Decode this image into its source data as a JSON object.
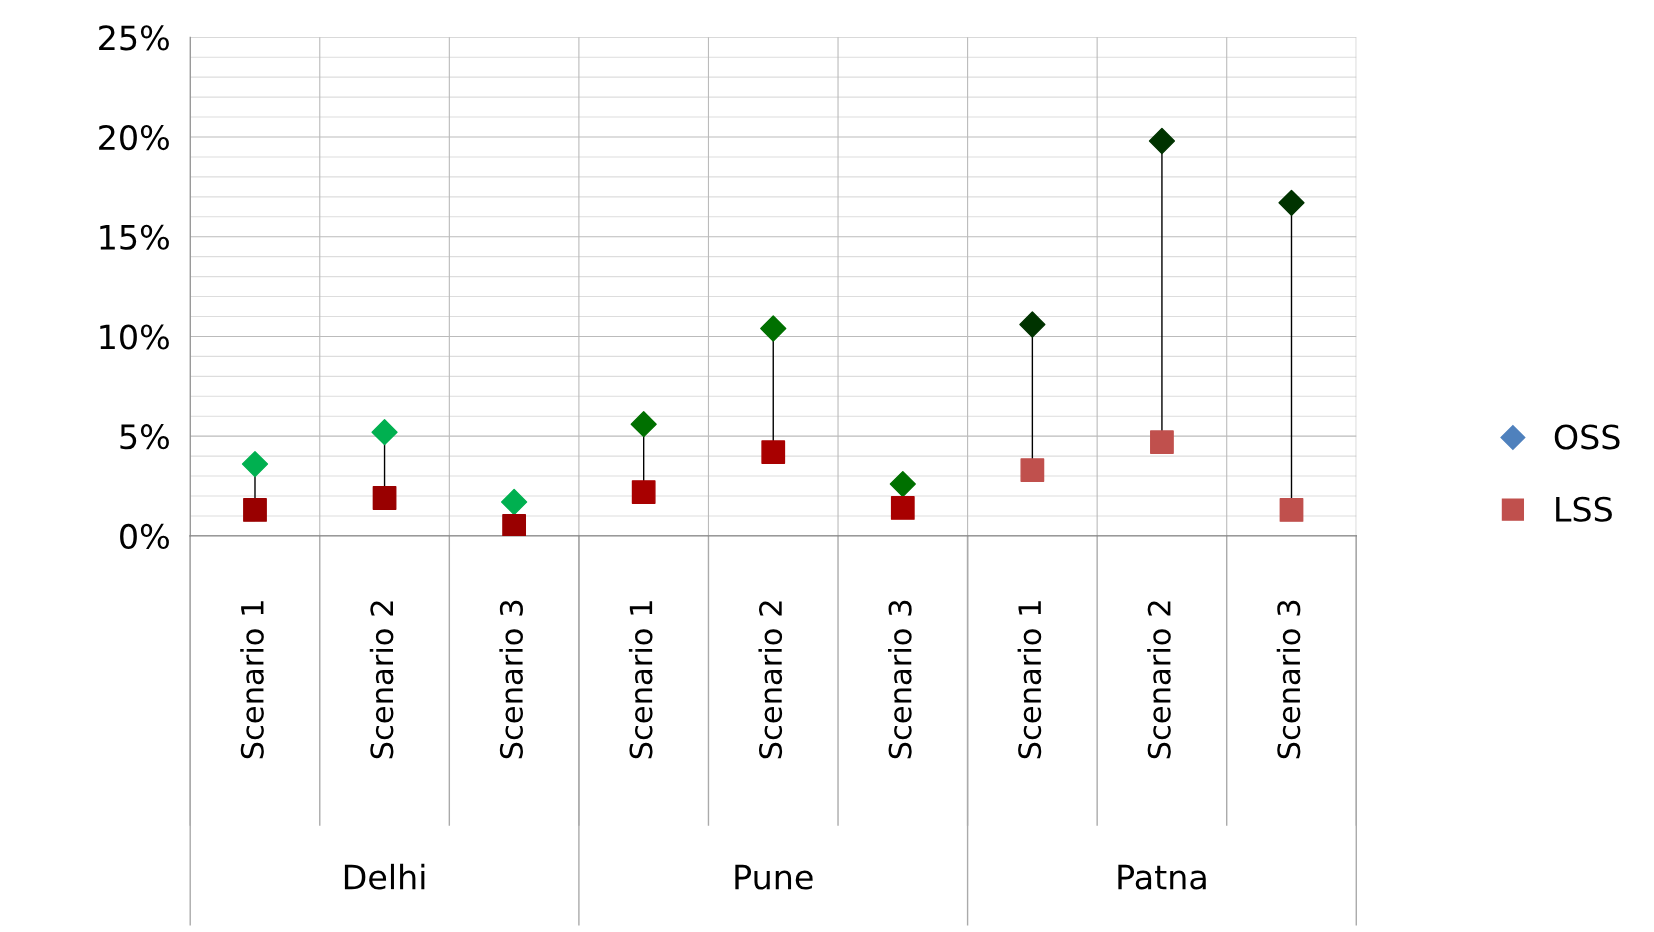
{
  "chart_data": {
    "type": "scatter",
    "categories": [
      "Scenario 1",
      "Scenario 2",
      "Scenario 3",
      "Scenario 1",
      "Scenario 2",
      "Scenario 3",
      "Scenario 1",
      "Scenario 2",
      "Scenario 3"
    ],
    "series": [
      {
        "name": "OSS",
        "color": "#4f81bd",
        "marker": "diamond",
        "colors": [
          "#00b050",
          "#00b050",
          "#00b050",
          "#007000",
          "#007000",
          "#007000",
          "#003300",
          "#003300",
          "#003300"
        ],
        "values": [
          3.6,
          5.2,
          1.7,
          5.6,
          10.4,
          2.6,
          10.6,
          19.8,
          16.7
        ]
      },
      {
        "name": "LSS",
        "color": "#c0504d",
        "marker": "square",
        "colors": [
          "#990000",
          "#990000",
          "#990000",
          "#a80000",
          "#a80000",
          "#a80000",
          "#c0504d",
          "#c0504d",
          "#c0504d"
        ],
        "values": [
          1.3,
          1.9,
          0.5,
          2.2,
          4.2,
          1.4,
          3.3,
          4.7,
          1.3
        ]
      }
    ],
    "annotations": [
      "Delhi",
      "Pune",
      "Patna"
    ],
    "ylim": [
      0,
      25
    ],
    "yticks": [
      {
        "value": 0,
        "label": "0%"
      },
      {
        "value": 1,
        "label": null
      },
      {
        "value": 2,
        "label": null
      },
      {
        "value": 3,
        "label": null
      },
      {
        "value": 4,
        "label": null
      },
      {
        "value": 5,
        "label": "5%"
      },
      {
        "value": 6,
        "label": null
      },
      {
        "value": 7,
        "label": null
      },
      {
        "value": 8,
        "label": null
      },
      {
        "value": 9,
        "label": null
      },
      {
        "value": 10,
        "label": "10%"
      },
      {
        "value": 11,
        "label": null
      },
      {
        "value": 12,
        "label": null
      },
      {
        "value": 13,
        "label": null
      },
      {
        "value": 14,
        "label": null
      },
      {
        "value": 15,
        "label": "15%"
      },
      {
        "value": 16,
        "label": null
      },
      {
        "value": 17,
        "label": null
      },
      {
        "value": 18,
        "label": null
      },
      {
        "value": 19,
        "label": null
      },
      {
        "value": 20,
        "label": "20%"
      },
      {
        "value": 21,
        "label": null
      },
      {
        "value": 22,
        "label": null
      },
      {
        "value": 23,
        "label": null
      },
      {
        "value": 24,
        "label": null
      },
      {
        "value": 25,
        "label": "25%"
      }
    ],
    "grid": true,
    "legend": "right"
  }
}
